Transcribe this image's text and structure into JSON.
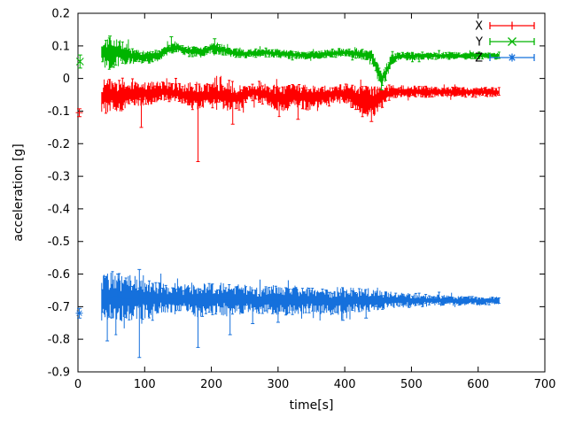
{
  "figure": {
    "background": "#ffffff",
    "foreground": "#000000"
  },
  "chart_data": {
    "type": "line",
    "subtype": "errorbars",
    "title": "",
    "xlabel": "time[s]",
    "ylabel": "acceleration [g]",
    "xlim": [
      0,
      700
    ],
    "ylim": [
      -0.9,
      0.2
    ],
    "grid": false,
    "xtick_values": [
      0,
      100,
      200,
      300,
      400,
      500,
      600,
      700
    ],
    "xtick_labels": [
      "0",
      "100",
      "200",
      "300",
      "400",
      "500",
      "600",
      "700"
    ],
    "ytick_values": [
      -0.9,
      -0.8,
      -0.7,
      -0.6,
      -0.5,
      -0.4,
      -0.3,
      -0.2,
      -0.1,
      0,
      0.1,
      0.2
    ],
    "ytick_labels": [
      "-0.9",
      "-0.8",
      "-0.7",
      "-0.6",
      "-0.5",
      "-0.4",
      "-0.3",
      "-0.2",
      "-0.1",
      "0",
      "0.1",
      "0.2"
    ],
    "legend": {
      "position": "top-right",
      "entries": [
        {
          "label": "X",
          "color": "#ff0000",
          "marker": "plus"
        },
        {
          "label": "Y",
          "color": "#00b400",
          "marker": "cross"
        },
        {
          "label": "Z",
          "color": "#1570dc",
          "marker": "asterisk"
        }
      ]
    },
    "series": [
      {
        "name": "X",
        "color": "#ff0000",
        "marker": "plus",
        "start_points": [
          {
            "t": 2,
            "y": -0.105,
            "err": 0.012
          }
        ],
        "band": {
          "t_start": 35,
          "t_end": 632,
          "profile": [
            [
              35,
              -0.06,
              0.055
            ],
            [
              50,
              -0.048,
              0.05
            ],
            [
              65,
              -0.055,
              0.048
            ],
            [
              80,
              -0.05,
              0.04
            ],
            [
              100,
              -0.046,
              0.038
            ],
            [
              130,
              -0.04,
              0.03
            ],
            [
              160,
              -0.05,
              0.034
            ],
            [
              180,
              -0.058,
              0.05
            ],
            [
              200,
              -0.05,
              0.04
            ],
            [
              220,
              -0.055,
              0.045
            ],
            [
              240,
              -0.06,
              0.04
            ],
            [
              260,
              -0.042,
              0.028
            ],
            [
              285,
              -0.05,
              0.035
            ],
            [
              305,
              -0.065,
              0.045
            ],
            [
              325,
              -0.05,
              0.038
            ],
            [
              345,
              -0.06,
              0.04
            ],
            [
              365,
              -0.055,
              0.034
            ],
            [
              385,
              -0.045,
              0.028
            ],
            [
              405,
              -0.05,
              0.034
            ],
            [
              425,
              -0.072,
              0.048
            ],
            [
              445,
              -0.07,
              0.048
            ],
            [
              460,
              -0.05,
              0.03
            ],
            [
              475,
              -0.04,
              0.02
            ],
            [
              520,
              -0.04,
              0.018
            ],
            [
              570,
              -0.042,
              0.016
            ],
            [
              632,
              -0.042,
              0.016
            ]
          ]
        },
        "spikes": [
          [
            180,
            -0.255
          ],
          [
            95,
            -0.15
          ],
          [
            232,
            -0.14
          ],
          [
            440,
            -0.132
          ],
          [
            330,
            -0.125
          ]
        ]
      },
      {
        "name": "Y",
        "color": "#00b400",
        "marker": "cross",
        "start_points": [
          {
            "t": 3,
            "y": 0.052,
            "err": 0.02
          }
        ],
        "band": {
          "t_start": 35,
          "t_end": 632,
          "profile": [
            [
              35,
              0.08,
              0.045
            ],
            [
              50,
              0.075,
              0.05
            ],
            [
              65,
              0.08,
              0.04
            ],
            [
              80,
              0.07,
              0.025
            ],
            [
              100,
              0.065,
              0.02
            ],
            [
              120,
              0.07,
              0.018
            ],
            [
              135,
              0.09,
              0.018
            ],
            [
              150,
              0.094,
              0.015
            ],
            [
              165,
              0.085,
              0.018
            ],
            [
              185,
              0.08,
              0.018
            ],
            [
              200,
              0.094,
              0.018
            ],
            [
              215,
              0.09,
              0.018
            ],
            [
              230,
              0.08,
              0.015
            ],
            [
              250,
              0.076,
              0.014
            ],
            [
              280,
              0.08,
              0.014
            ],
            [
              310,
              0.075,
              0.014
            ],
            [
              340,
              0.07,
              0.013
            ],
            [
              370,
              0.075,
              0.013
            ],
            [
              400,
              0.08,
              0.014
            ],
            [
              420,
              0.075,
              0.016
            ],
            [
              440,
              0.07,
              0.018
            ],
            [
              450,
              0.02,
              0.028
            ],
            [
              456,
              -0.005,
              0.024
            ],
            [
              462,
              0.02,
              0.024
            ],
            [
              470,
              0.058,
              0.018
            ],
            [
              480,
              0.068,
              0.014
            ],
            [
              520,
              0.07,
              0.012
            ],
            [
              570,
              0.07,
              0.011
            ],
            [
              632,
              0.07,
              0.011
            ]
          ]
        },
        "spikes": [
          [
            455,
            -0.035
          ],
          [
            140,
            0.128
          ],
          [
            205,
            0.122
          ],
          [
            48,
            0.13
          ]
        ]
      },
      {
        "name": "Z",
        "color": "#1570dc",
        "marker": "asterisk",
        "start_points": [
          {
            "t": 2,
            "y": -0.72,
            "err": 0.015
          }
        ],
        "band": {
          "t_start": 35,
          "t_end": 632,
          "profile": [
            [
              35,
              -0.675,
              0.075
            ],
            [
              55,
              -0.67,
              0.08
            ],
            [
              75,
              -0.675,
              0.07
            ],
            [
              95,
              -0.673,
              0.08
            ],
            [
              115,
              -0.675,
              0.05
            ],
            [
              150,
              -0.675,
              0.042
            ],
            [
              180,
              -0.68,
              0.058
            ],
            [
              210,
              -0.676,
              0.052
            ],
            [
              240,
              -0.676,
              0.05
            ],
            [
              270,
              -0.68,
              0.04
            ],
            [
              310,
              -0.68,
              0.048
            ],
            [
              350,
              -0.68,
              0.04
            ],
            [
              380,
              -0.684,
              0.044
            ],
            [
              410,
              -0.68,
              0.04
            ],
            [
              440,
              -0.68,
              0.034
            ],
            [
              470,
              -0.68,
              0.026
            ],
            [
              520,
              -0.68,
              0.02
            ],
            [
              570,
              -0.682,
              0.015
            ],
            [
              632,
              -0.682,
              0.012
            ]
          ]
        },
        "spikes": [
          [
            44,
            -0.805
          ],
          [
            92,
            -0.856
          ],
          [
            180,
            -0.825
          ],
          [
            228,
            -0.786
          ],
          [
            262,
            -0.752
          ],
          [
            300,
            -0.748
          ],
          [
            397,
            -0.742
          ],
          [
            60,
            -0.6
          ],
          [
            92,
            -0.586
          ],
          [
            432,
            -0.735
          ]
        ]
      }
    ]
  }
}
